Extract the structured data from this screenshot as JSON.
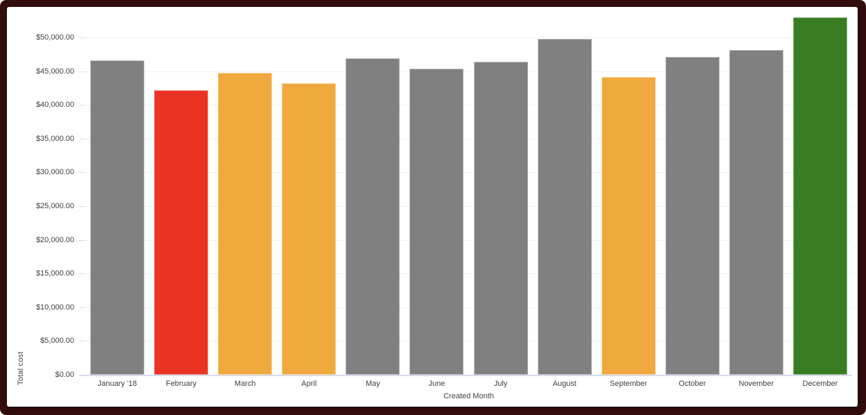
{
  "chart_data": {
    "type": "bar",
    "title": "",
    "xlabel": "Created Month",
    "ylabel": "Total cost",
    "categories": [
      "January '18",
      "February",
      "March",
      "April",
      "May",
      "June",
      "July",
      "August",
      "September",
      "October",
      "November",
      "December"
    ],
    "values": [
      46600,
      42150,
      44800,
      43200,
      46950,
      45400,
      46450,
      49800,
      44200,
      47100,
      48200,
      53000
    ],
    "bar_colors": [
      "#808080",
      "#EA3423",
      "#F0A93E",
      "#F0A93E",
      "#808080",
      "#808080",
      "#808080",
      "#808080",
      "#F0A93E",
      "#808080",
      "#808080",
      "#387D22"
    ],
    "ylim": [
      0,
      53000
    ],
    "ytick_values": [
      0,
      5000,
      10000,
      15000,
      20000,
      25000,
      30000,
      35000,
      40000,
      45000,
      50000
    ],
    "yticks": [
      "$0.00",
      "$5,000.00",
      "$10,000.00",
      "$15,000.00",
      "$20,000.00",
      "$25,000.00",
      "$30,000.00",
      "$35,000.00",
      "$40,000.00",
      "$45,000.00",
      "$50,000.00"
    ],
    "grid": true,
    "legend": "none"
  },
  "colors": {
    "bar_default": "#808080",
    "bar_red": "#EA3423",
    "bar_orange": "#F0A93E",
    "bar_green": "#387D22",
    "frame": "#320D0B",
    "gridline": "#F0F0F0",
    "baseline": "#D6DCE8",
    "axis_text": "#3C4043"
  }
}
